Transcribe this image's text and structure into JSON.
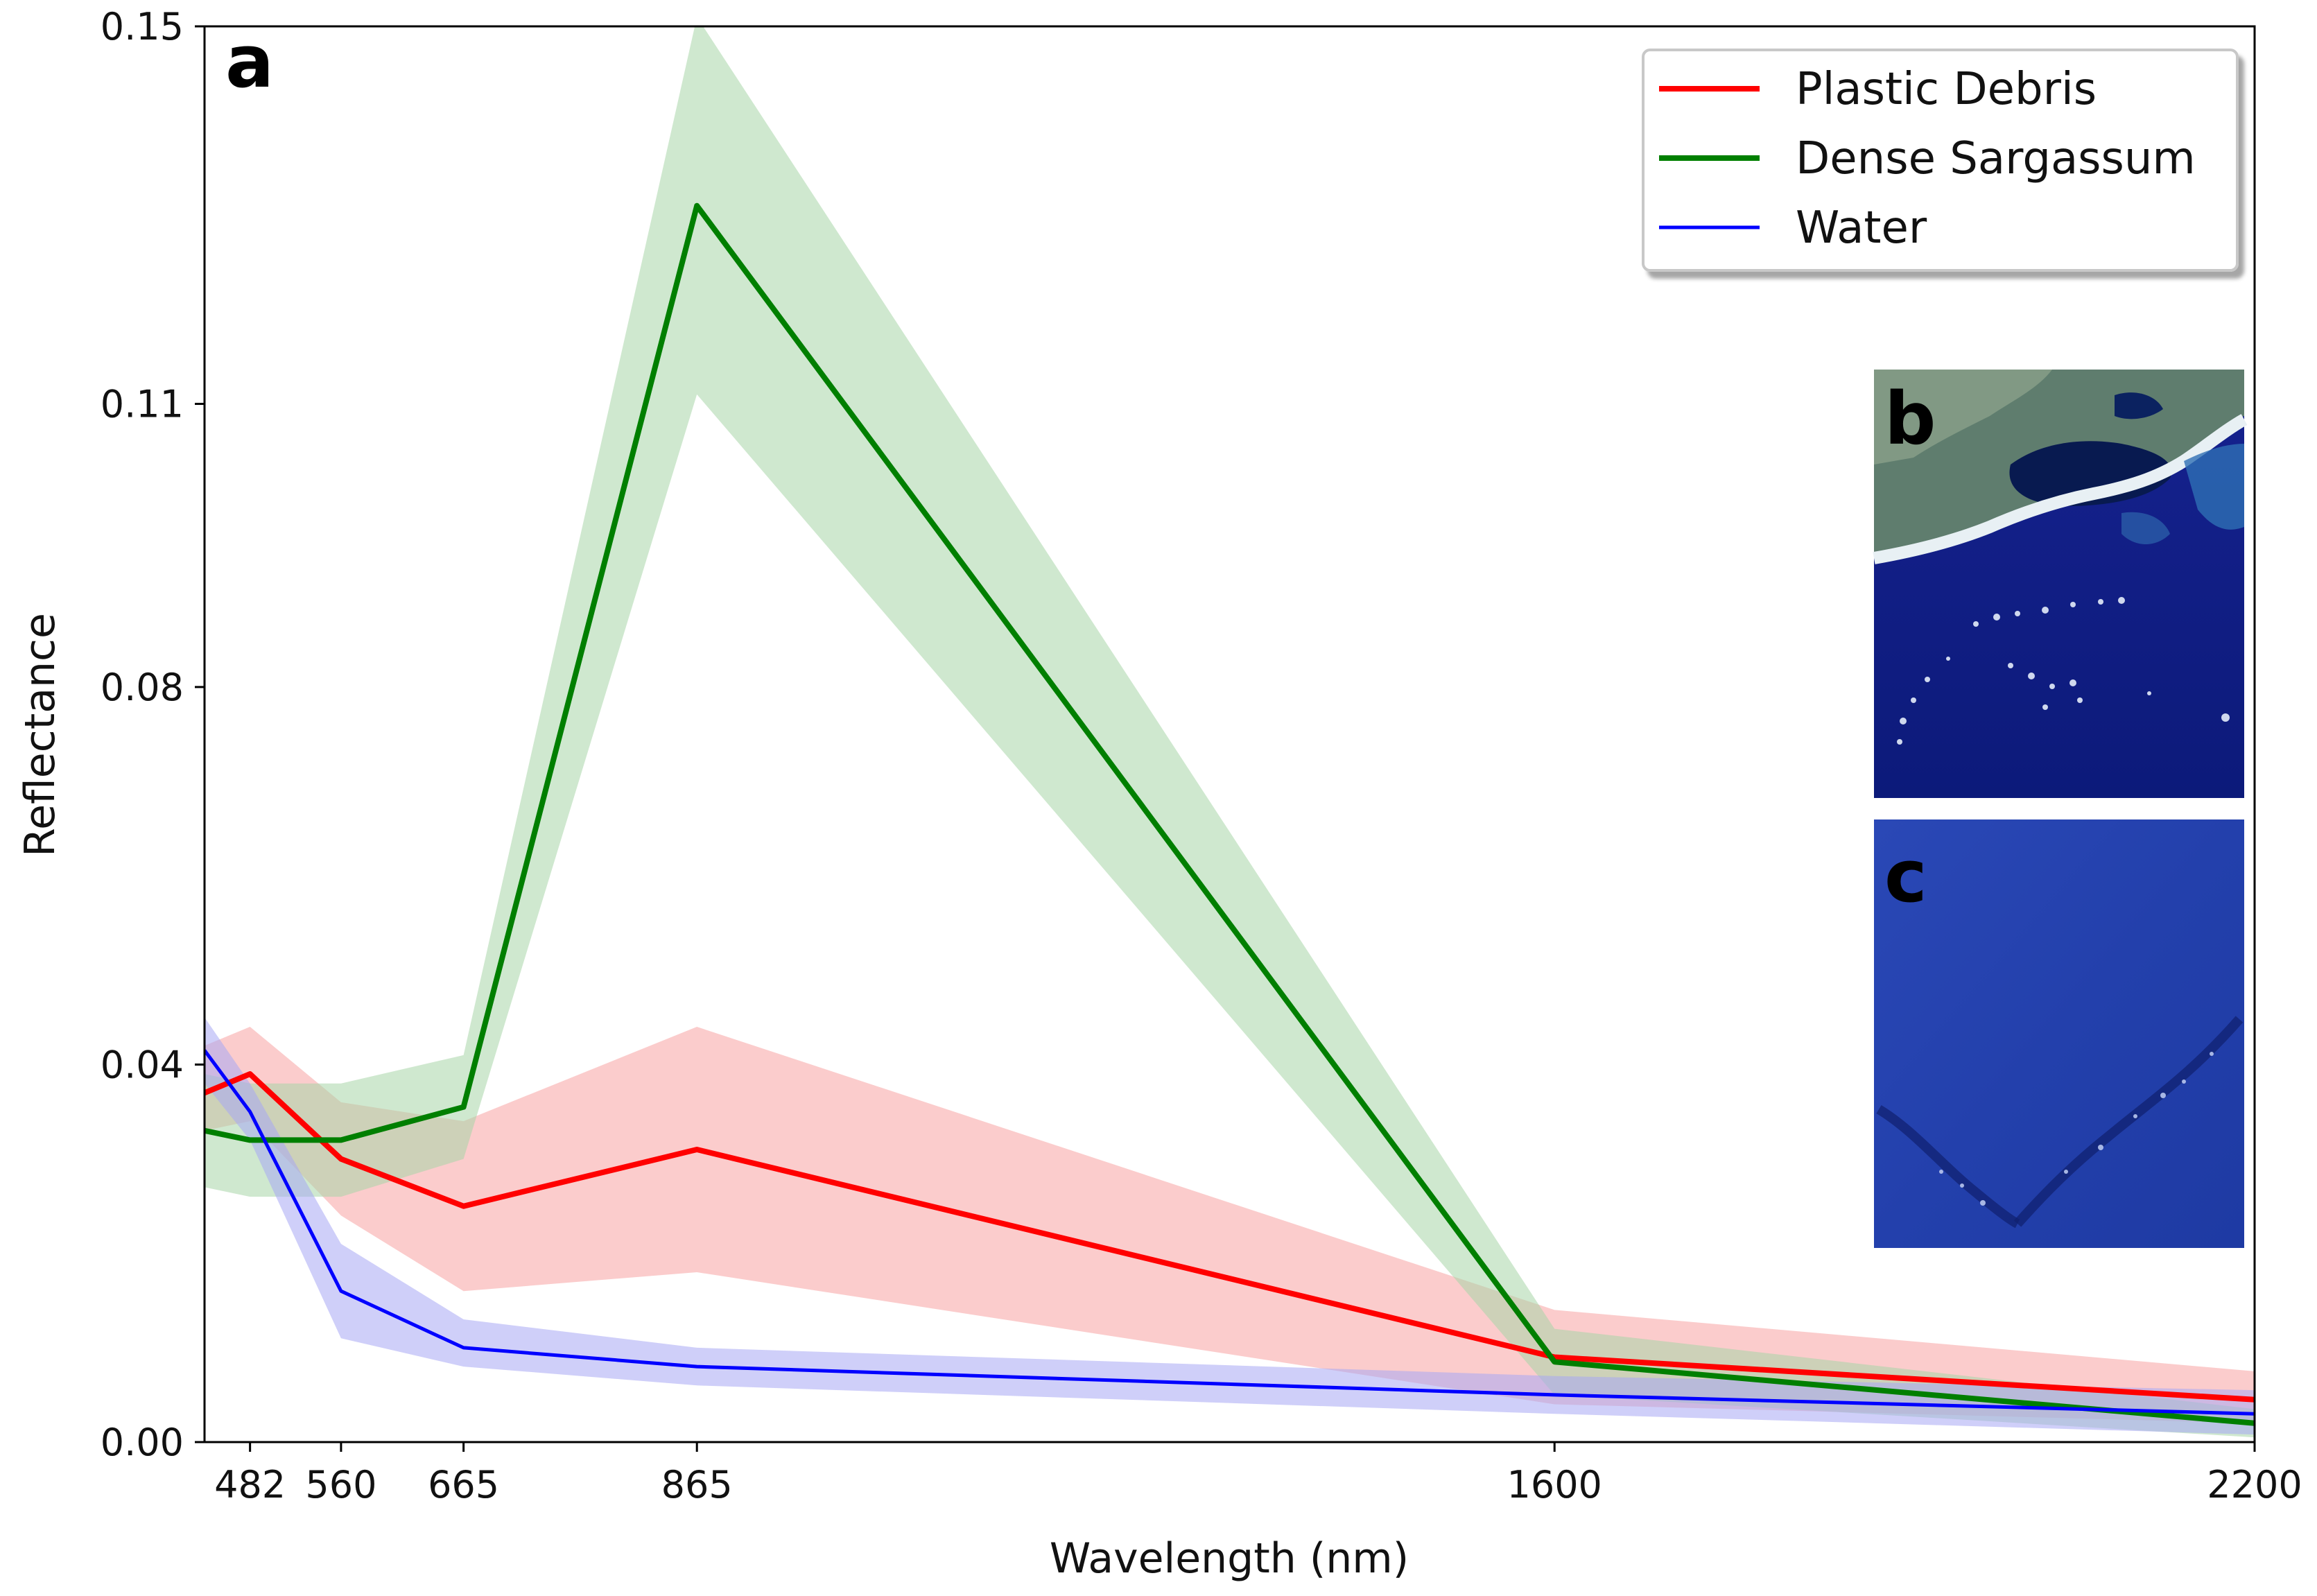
{
  "panel_labels": {
    "main": "a",
    "inset_top": "b",
    "inset_bottom": "c"
  },
  "chart_data": {
    "type": "line",
    "xlabel": "Wavelength (nm)",
    "ylabel": "Reflectance",
    "x": [
      443,
      482,
      560,
      665,
      865,
      1600,
      2200
    ],
    "x_ticks": [
      482,
      560,
      665,
      865,
      1600,
      2200
    ],
    "y_ticks": [
      0.0,
      0.04,
      0.08,
      0.11,
      0.15
    ],
    "y_tick_labels": [
      "0.00",
      "0.04",
      "0.08",
      "0.11",
      "0.15"
    ],
    "xlim": [
      443,
      2200
    ],
    "ylim": [
      0,
      0.15
    ],
    "grid": false,
    "legend_position": "top-right",
    "series": [
      {
        "name": "Plastic Debris",
        "color": "#ff0000",
        "band_color": "#f7a3a3",
        "values": [
          0.037,
          0.039,
          0.03,
          0.025,
          0.031,
          0.009,
          0.0045
        ],
        "lower": [
          0.033,
          0.034,
          0.024,
          0.016,
          0.018,
          0.004,
          0.002
        ],
        "upper": [
          0.042,
          0.044,
          0.036,
          0.034,
          0.044,
          0.014,
          0.0075
        ]
      },
      {
        "name": "Dense Sargassum",
        "color": "#007f00",
        "band_color": "#a8d5a8",
        "values": [
          0.033,
          0.032,
          0.032,
          0.0355,
          0.131,
          0.0085,
          0.002
        ],
        "lower": [
          0.027,
          0.026,
          0.026,
          0.03,
          0.111,
          0.005,
          0.0005
        ],
        "upper": [
          0.039,
          0.038,
          0.038,
          0.041,
          0.151,
          0.012,
          0.0035
        ]
      },
      {
        "name": "Water",
        "color": "#0000ff",
        "band_color": "#a8a8f4",
        "values": [
          0.0415,
          0.035,
          0.016,
          0.01,
          0.008,
          0.005,
          0.003
        ],
        "lower": [
          0.038,
          0.032,
          0.011,
          0.008,
          0.006,
          0.003,
          0.0008
        ],
        "upper": [
          0.045,
          0.038,
          0.021,
          0.013,
          0.01,
          0.007,
          0.0055
        ]
      }
    ]
  }
}
